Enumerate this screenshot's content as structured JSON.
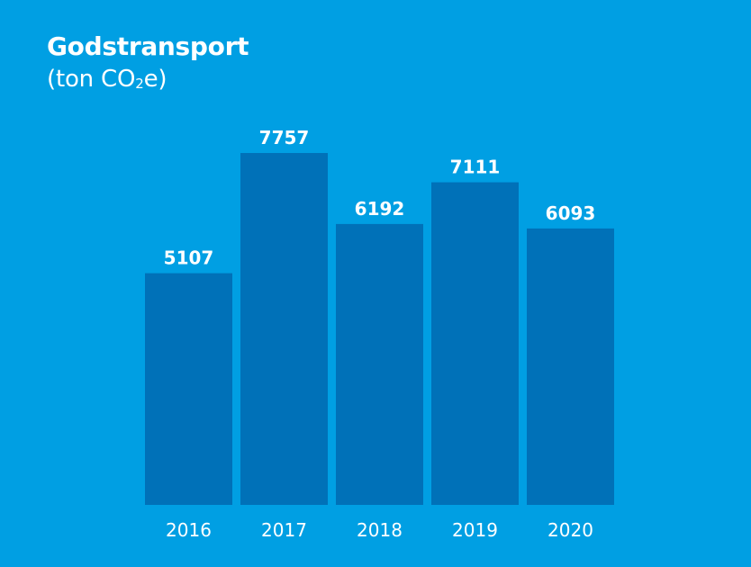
{
  "chart_data": {
    "type": "bar",
    "title": "Godstransport",
    "subtitle": {
      "prefix": "(ton CO",
      "subscript": "2",
      "suffix": "e)"
    },
    "categories": [
      "2016",
      "2017",
      "2018",
      "2019",
      "2020"
    ],
    "values": [
      5107,
      7757,
      6192,
      7111,
      6093
    ],
    "data_labels": [
      "5107",
      "7757",
      "6192",
      "7111",
      "6093"
    ],
    "ylim": [
      0,
      8000
    ],
    "grid": false,
    "legend": "none",
    "colors": {
      "background": "#009fe3",
      "bar": "#0071b8",
      "text": "#ffffff"
    }
  }
}
